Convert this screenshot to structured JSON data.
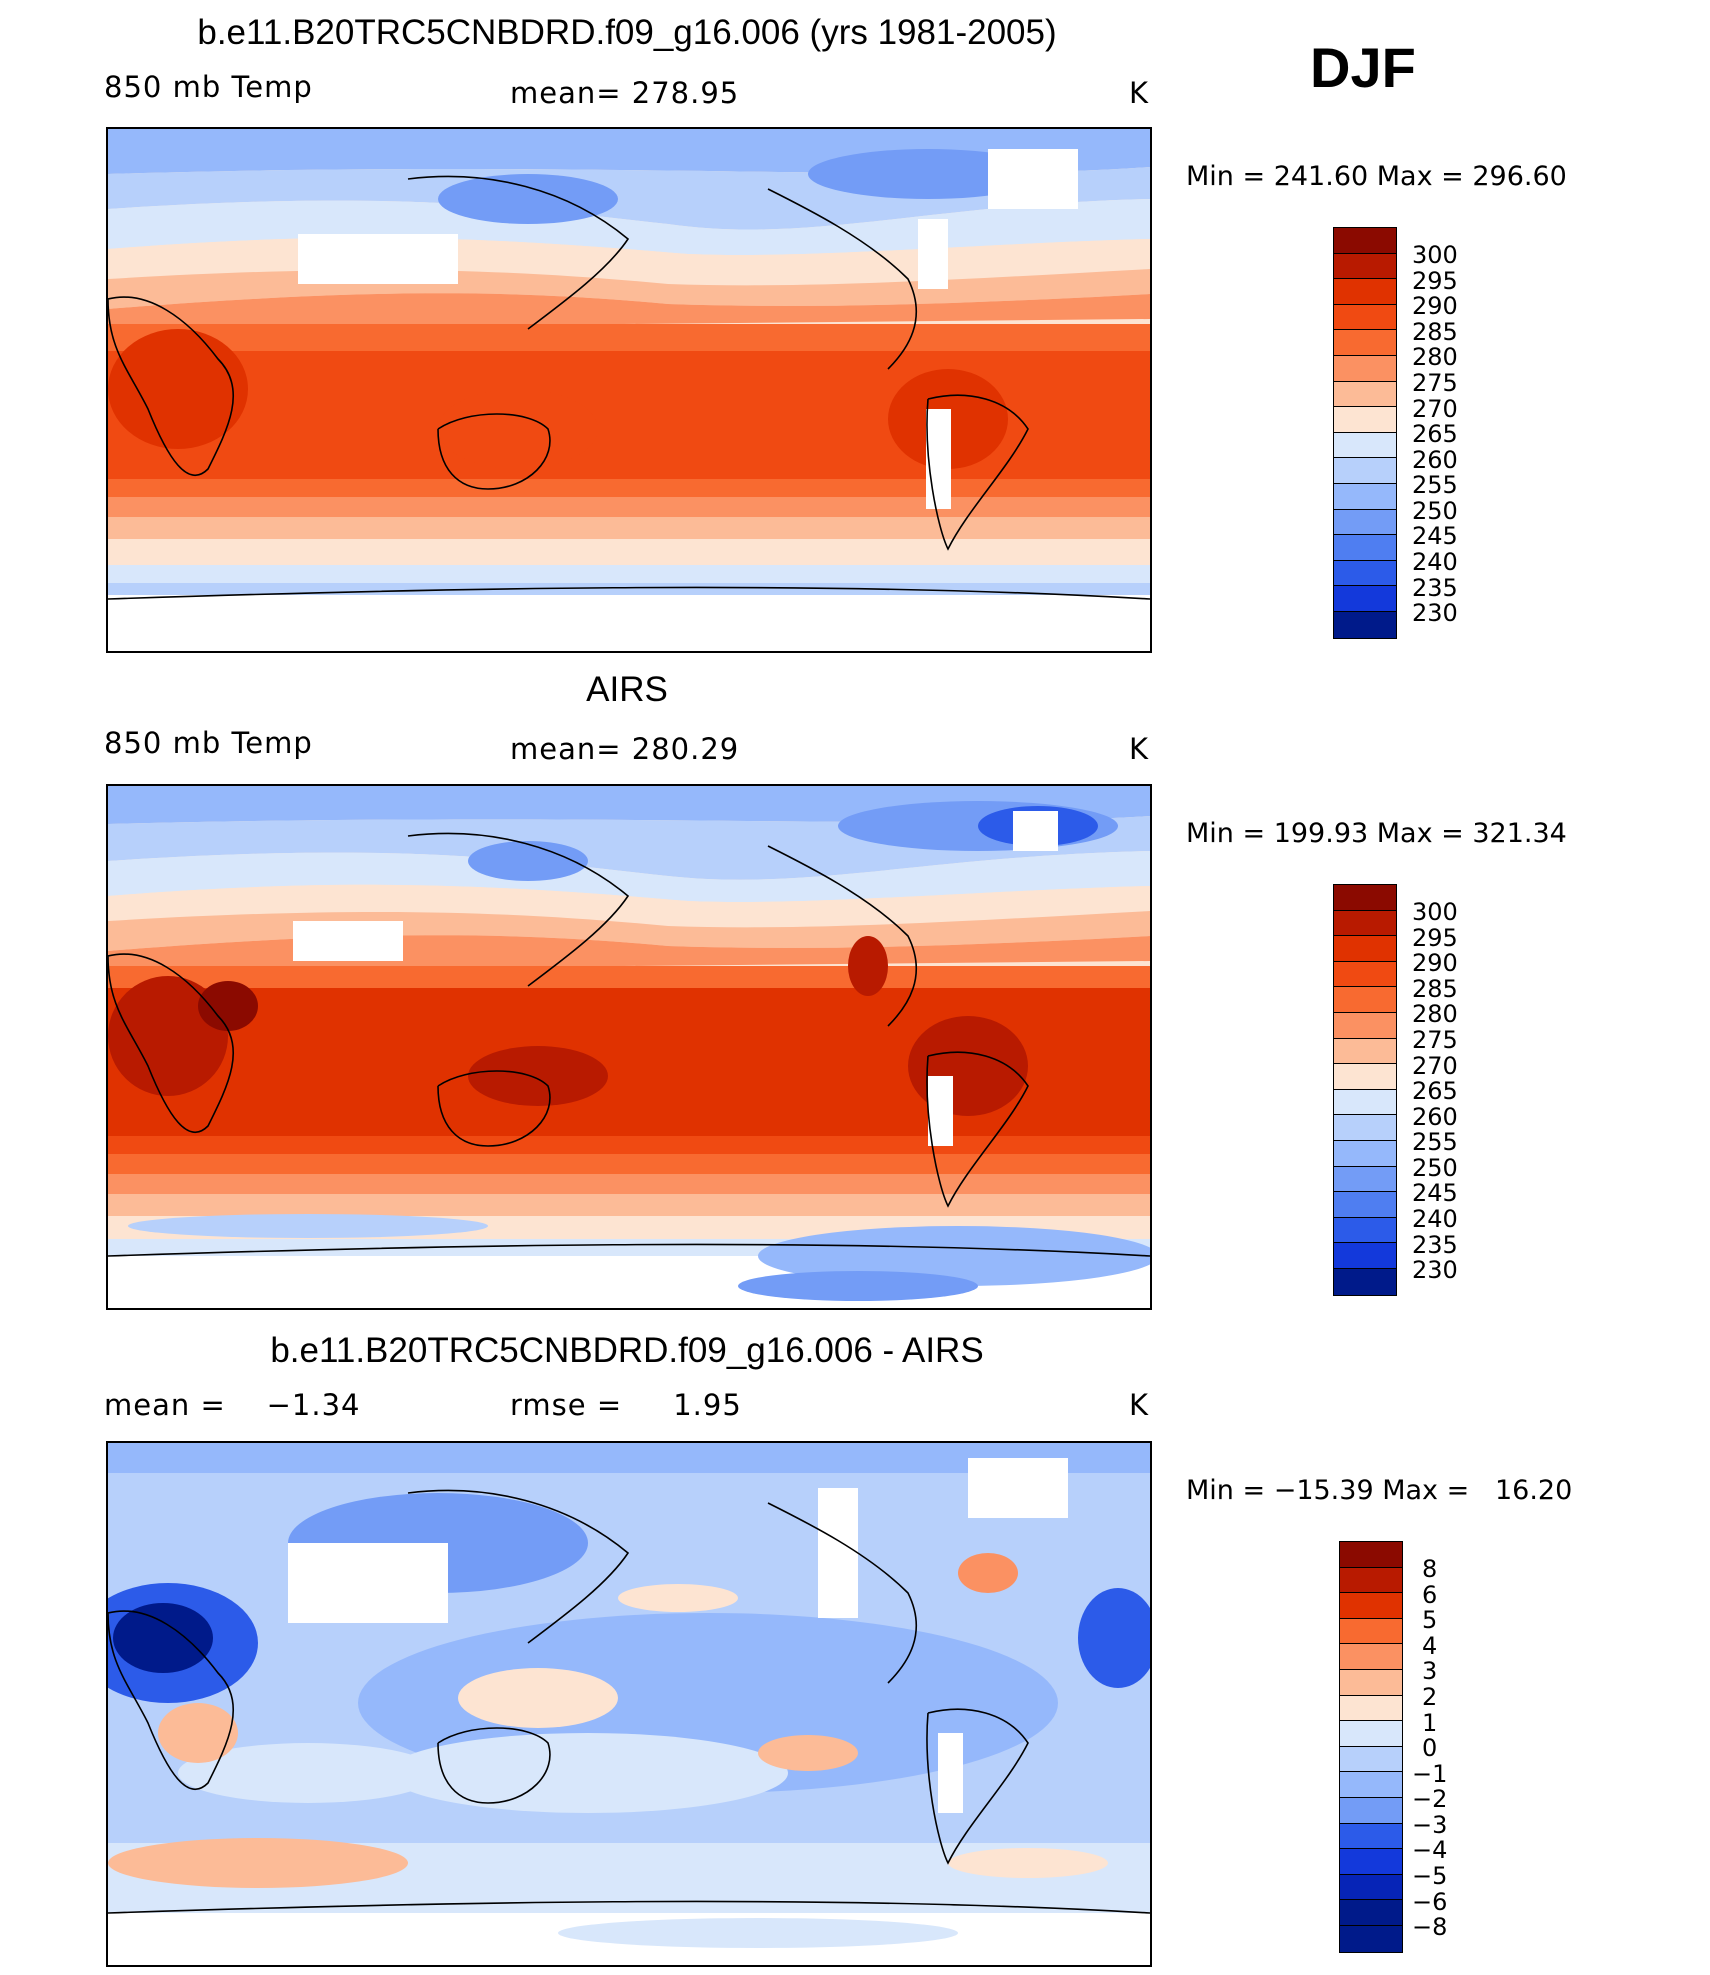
{
  "season": "DJF",
  "panels": [
    {
      "title": "b.e11.B20TRC5CNBDRD.f09_g16.006 (yrs 1981-2005)",
      "left_label": "850 mb Temp",
      "center_label": "mean= 278.95",
      "units": "K",
      "minmax": "Min = 241.60 Max = 296.60",
      "colorbar_labels": [
        "300",
        "295",
        "290",
        "285",
        "280",
        "275",
        "270",
        "265",
        "260",
        "255",
        "250",
        "245",
        "240",
        "235",
        "230"
      ]
    },
    {
      "title": "AIRS",
      "left_label": "850 mb Temp",
      "center_label": "mean= 280.29",
      "units": "K",
      "minmax": "Min = 199.93 Max = 321.34",
      "colorbar_labels": [
        "300",
        "295",
        "290",
        "285",
        "280",
        "275",
        "270",
        "265",
        "260",
        "255",
        "250",
        "245",
        "240",
        "235",
        "230"
      ]
    },
    {
      "title": "b.e11.B20TRC5CNBDRD.f09_g16.006 - AIRS",
      "left_label": "mean =    −1.34",
      "center_label": "rmse =     1.95",
      "units": "K",
      "minmax": "Min = −15.39 Max =   16.20",
      "colorbar_labels": [
        "8",
        "6",
        "5",
        "4",
        "3",
        "2",
        "1",
        "0",
        "−1",
        "−2",
        "−3",
        "−4",
        "−5",
        "−6",
        "−8"
      ]
    }
  ],
  "colors": {
    "temp_scale": [
      "#8b0a00",
      "#b81a00",
      "#e03200",
      "#f04a12",
      "#f86a30",
      "#fb9162",
      "#fcbb97",
      "#fde4d2",
      "#d8e7fb",
      "#b7d0fb",
      "#95b8fb",
      "#739cf6",
      "#4f7ef1",
      "#2c5be9",
      "#1339db",
      "#0624b7",
      "#001a8a"
    ],
    "diff_scale": [
      "#8b0a00",
      "#b81a00",
      "#e03200",
      "#f86a30",
      "#fb9162",
      "#fcbb97",
      "#fde4d2",
      "#d8e7fb",
      "#b7d0fb",
      "#95b8fb",
      "#739cf6",
      "#2c5be9",
      "#1339db",
      "#0624b7",
      "#001a8a"
    ]
  }
}
